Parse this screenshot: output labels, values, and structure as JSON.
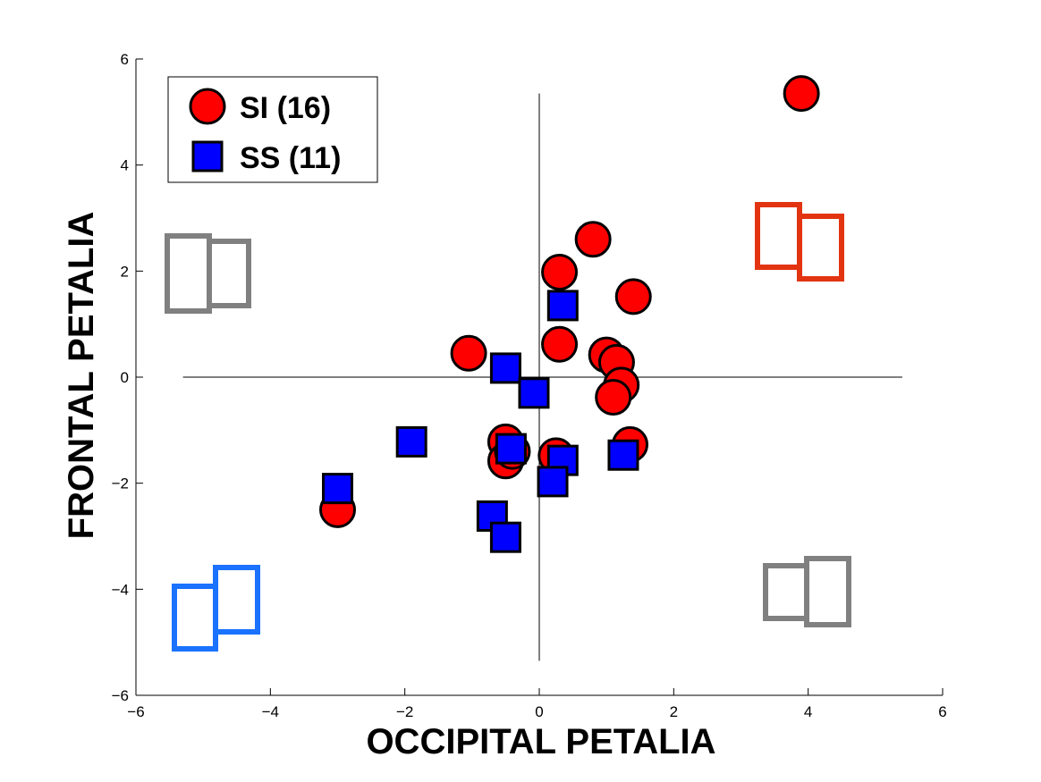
{
  "chart_data": {
    "type": "scatter",
    "xlabel": "OCCIPITAL PETALIA",
    "ylabel": "FRONTAL PETALIA",
    "xlim": [
      -6,
      6
    ],
    "ylim": [
      -6,
      6
    ],
    "xticks": [
      "−6",
      "−4",
      "−2",
      "0",
      "2",
      "4",
      "6"
    ],
    "yticks": [
      "−6",
      "−4",
      "−2",
      "0",
      "2",
      "4",
      "6"
    ],
    "grid": false,
    "legend_position": "top-left",
    "crosshair": {
      "x_range": [
        -5.3,
        5.4
      ],
      "y_range": [
        -5.35,
        5.35
      ]
    },
    "series": [
      {
        "name": "SI (16)",
        "marker": "circle",
        "color": "#ff0000",
        "points": [
          {
            "x": 3.9,
            "y": 5.35
          },
          {
            "x": 0.8,
            "y": 2.6
          },
          {
            "x": 0.3,
            "y": 1.98
          },
          {
            "x": 1.4,
            "y": 1.52
          },
          {
            "x": 0.3,
            "y": 0.62
          },
          {
            "x": -1.05,
            "y": 0.45
          },
          {
            "x": 1.0,
            "y": 0.42
          },
          {
            "x": 1.15,
            "y": 0.28
          },
          {
            "x": 1.22,
            "y": -0.15
          },
          {
            "x": 1.1,
            "y": -0.38
          },
          {
            "x": -0.5,
            "y": -1.22
          },
          {
            "x": 1.35,
            "y": -1.27
          },
          {
            "x": -0.5,
            "y": -1.58
          },
          {
            "x": -0.4,
            "y": -1.4
          },
          {
            "x": 0.25,
            "y": -1.48
          },
          {
            "x": -3.0,
            "y": -2.5
          }
        ]
      },
      {
        "name": "SS (11)",
        "marker": "square",
        "color": "#0000ff",
        "points": [
          {
            "x": 0.35,
            "y": 1.35
          },
          {
            "x": -0.5,
            "y": 0.17
          },
          {
            "x": -0.08,
            "y": -0.3
          },
          {
            "x": -1.9,
            "y": -1.22
          },
          {
            "x": -0.42,
            "y": -1.35
          },
          {
            "x": 0.35,
            "y": -1.57
          },
          {
            "x": 1.25,
            "y": -1.47
          },
          {
            "x": 0.2,
            "y": -1.97
          },
          {
            "x": -3.0,
            "y": -2.1
          },
          {
            "x": -0.7,
            "y": -2.62
          },
          {
            "x": -0.5,
            "y": -3.02
          }
        ]
      }
    ],
    "quadrant_icons": [
      {
        "quadrant": "top-left",
        "color": "#808080"
      },
      {
        "quadrant": "top-right",
        "color": "#e23410"
      },
      {
        "quadrant": "bottom-left",
        "color": "#1a72ff"
      },
      {
        "quadrant": "bottom-right",
        "color": "#808080"
      }
    ]
  }
}
